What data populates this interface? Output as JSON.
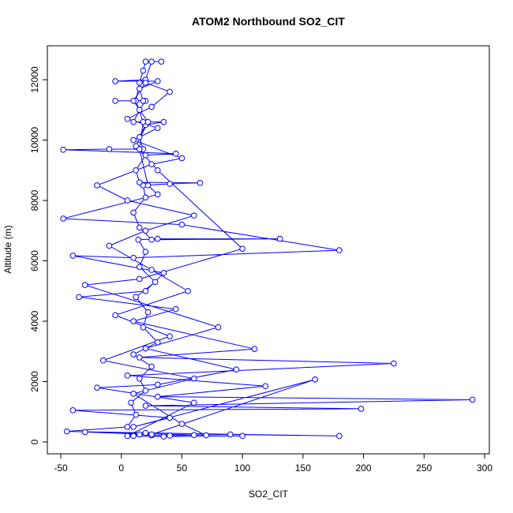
{
  "chart_data": {
    "type": "scatter",
    "title": "ATOM2 Northbound SO2_CIT",
    "x_label": "SO2_CIT",
    "y_label": "Altitude (m)",
    "color": "#0000ff",
    "xlim": [
      -61.1,
      303.9
    ],
    "ylim": [
      -392,
      13124
    ],
    "xticks": [
      -50,
      0,
      50,
      100,
      150,
      200,
      250,
      300
    ],
    "yticks": [
      0,
      2000,
      4000,
      6000,
      8000,
      10000,
      12000
    ],
    "x": [
      10,
      15,
      25,
      40,
      60,
      90,
      180,
      20,
      -45,
      5,
      12,
      8,
      20,
      15,
      25,
      10,
      30,
      18,
      22,
      12,
      28,
      15,
      20,
      14,
      30,
      131,
      25,
      15,
      10,
      20,
      18,
      40,
      65,
      15,
      12,
      20,
      45,
      -48,
      -10,
      18,
      15,
      20,
      35,
      10,
      15,
      20,
      -5,
      18,
      15,
      30,
      -5,
      20,
      25,
      33,
      20,
      18,
      15,
      12,
      18,
      15,
      22,
      30,
      -48,
      50,
      180,
      10,
      -40,
      35,
      20,
      -35,
      45,
      10,
      110,
      15,
      225,
      5,
      119,
      30,
      290,
      20,
      198,
      -40,
      40,
      10,
      160,
      25,
      -30,
      70,
      50,
      10,
      60,
      -15,
      40,
      -5,
      55,
      25,
      -10,
      20,
      60,
      5,
      -20,
      25,
      50,
      10,
      30,
      5,
      25,
      40,
      20,
      10,
      22,
      12,
      30,
      100,
      15,
      -30,
      80,
      20,
      95,
      30,
      -20,
      60,
      5,
      35,
      100
    ],
    "values": [
      200,
      250,
      220,
      210,
      230,
      250,
      200,
      300,
      350,
      500,
      900,
      1300,
      1700,
      2100,
      2500,
      2900,
      3300,
      3800,
      4300,
      4800,
      5300,
      5800,
      6300,
      6700,
      6730,
      6730,
      6700,
      7100,
      7600,
      8100,
      8500,
      8550,
      8580,
      8600,
      9000,
      9500,
      9550,
      9680,
      9700,
      9700,
      10100,
      10500,
      10600,
      10600,
      11000,
      11300,
      11300,
      11300,
      11700,
      11950,
      11950,
      12000,
      12600,
      12600,
      12600,
      12300,
      11900,
      11300,
      10600,
      9700,
      8500,
      8200,
      7400,
      7200,
      6350,
      6100,
      6170,
      5600,
      5000,
      4800,
      4400,
      4000,
      3080,
      2800,
      2600,
      2200,
      1850,
      1500,
      1400,
      1200,
      1100,
      1050,
      800,
      500,
      2070,
      250,
      330,
      220,
      600,
      1600,
      2100,
      2700,
      3500,
      4200,
      5000,
      5700,
      6500,
      7000,
      7500,
      8000,
      8500,
      9200,
      9400,
      10000,
      10400,
      10700,
      11100,
      11600,
      11900,
      11300,
      10600,
      9800,
      9000,
      6400,
      5400,
      5200,
      3800,
      3100,
      2400,
      1900,
      1800,
      1300,
      200,
      180,
      200
    ]
  }
}
